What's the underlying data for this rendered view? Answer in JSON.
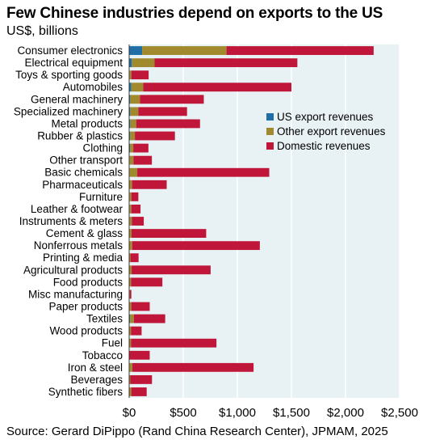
{
  "title": "Few Chinese industries depend on exports to the US",
  "subtitle": "US$, billions",
  "source": "Source: Gerard DiPippo (Rand China Research Center), JPMAM, 2025",
  "colors": {
    "us": "#1f6fa6",
    "other": "#a18a2e",
    "domestic": "#c0163a",
    "plot_bg": "#e8f1f4"
  },
  "chart_data": {
    "type": "bar",
    "orientation": "horizontal",
    "stacked": true,
    "title": "Few Chinese industries depend on exports to the US",
    "subtitle": "US$, billions",
    "categories": [
      "Consumer electronics",
      "Electrical equipment",
      "Toys & sporting goods",
      "Automobiles",
      "General machinery",
      "Specialized machinery",
      "Metal products",
      "Rubber & plastics",
      "Clothing",
      "Other transport",
      "Basic chemicals",
      "Pharmaceuticals",
      "Furniture",
      "Leather & footwear",
      "Instruments & meters",
      "Cement & glass",
      "Nonferrous metals",
      "Printing & media",
      "Agricultural products",
      "Food products",
      "Misc manufacturing",
      "Paper products",
      "Textiles",
      "Wood products",
      "Fuel",
      "Tobacco",
      "Iron & steel",
      "Beverages",
      "Synthetic fibers"
    ],
    "series": [
      {
        "name": "US export revenues",
        "values": [
          120,
          25,
          5,
          20,
          10,
          10,
          10,
          8,
          8,
          5,
          5,
          2,
          5,
          5,
          5,
          2,
          3,
          2,
          3,
          2,
          2,
          3,
          8,
          2,
          2,
          1,
          5,
          1,
          2
        ]
      },
      {
        "name": "Other export revenues",
        "values": [
          780,
          210,
          15,
          110,
          90,
          75,
          55,
          45,
          30,
          35,
          70,
          25,
          15,
          15,
          20,
          20,
          25,
          10,
          20,
          15,
          5,
          17,
          35,
          15,
          15,
          2,
          25,
          10,
          18
        ]
      },
      {
        "name": "Domestic revenues",
        "values": [
          1360,
          1320,
          160,
          1370,
          590,
          450,
          590,
          370,
          140,
          170,
          1220,
          320,
          65,
          85,
          110,
          690,
          1180,
          75,
          730,
          290,
          13,
          170,
          290,
          98,
          790,
          187,
          1120,
          200,
          142
        ]
      }
    ],
    "xlim": [
      0,
      2500
    ],
    "xticks": [
      0,
      500,
      1000,
      1500,
      2000,
      2500
    ],
    "xtick_labels": [
      "$0",
      "$500",
      "$1,000",
      "$1,500",
      "$2,000",
      "$2,500"
    ],
    "legend": [
      "US export revenues",
      "Other export revenues",
      "Domestic revenues"
    ],
    "legend_position": "right-middle",
    "grid": "vertical"
  }
}
